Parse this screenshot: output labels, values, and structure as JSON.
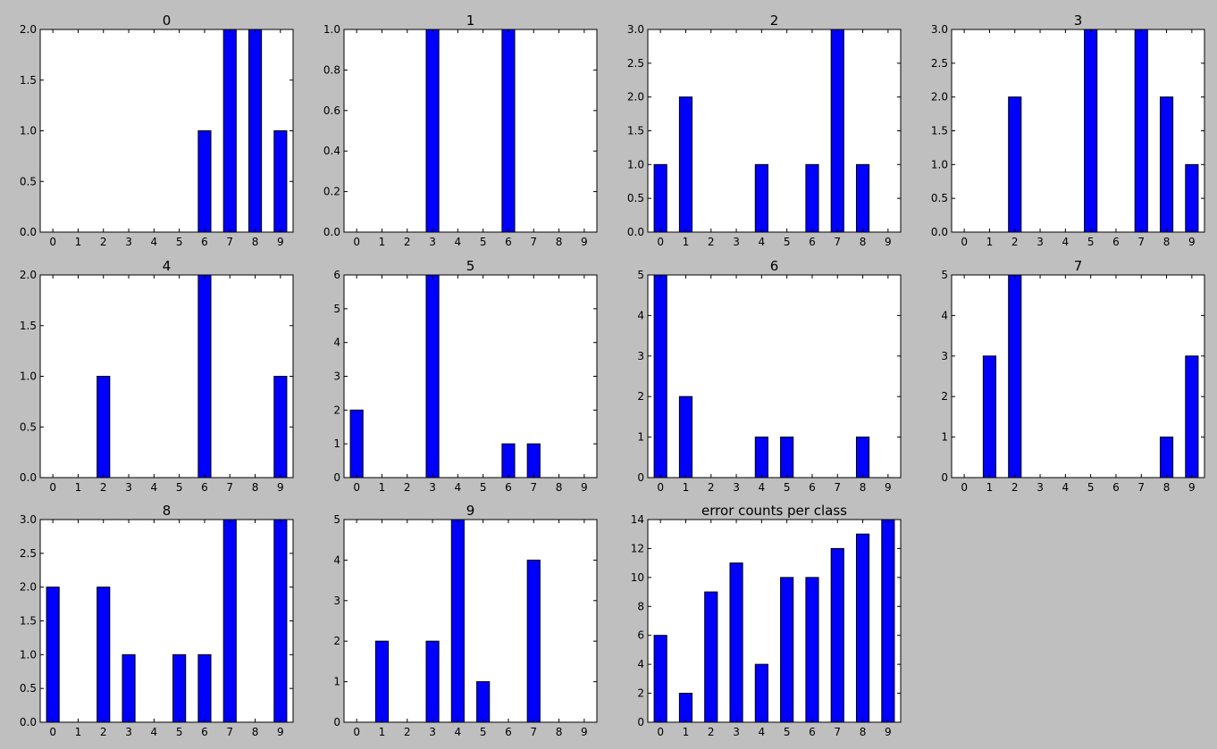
{
  "figure": {
    "background": "#bfbfbf",
    "bar_color": "#0000ff",
    "edge_color": "#000000"
  },
  "chart_data": [
    {
      "type": "bar",
      "title": "0",
      "categories": [
        "0",
        "1",
        "2",
        "3",
        "4",
        "5",
        "6",
        "7",
        "8",
        "9"
      ],
      "values": [
        0,
        0,
        0,
        0,
        0,
        0,
        1,
        2,
        2,
        1
      ],
      "ylim": [
        0,
        2
      ],
      "yticks": [
        "0.0",
        "0.5",
        "1.0",
        "1.5",
        "2.0"
      ],
      "grid": false
    },
    {
      "type": "bar",
      "title": "1",
      "categories": [
        "0",
        "1",
        "2",
        "3",
        "4",
        "5",
        "6",
        "7",
        "8",
        "9"
      ],
      "values": [
        0,
        0,
        0,
        1,
        0,
        0,
        1,
        0,
        0,
        0
      ],
      "ylim": [
        0,
        1
      ],
      "yticks": [
        "0.0",
        "0.2",
        "0.4",
        "0.6",
        "0.8",
        "1.0"
      ],
      "grid": false
    },
    {
      "type": "bar",
      "title": "2",
      "categories": [
        "0",
        "1",
        "2",
        "3",
        "4",
        "5",
        "6",
        "7",
        "8",
        "9"
      ],
      "values": [
        1,
        2,
        0,
        0,
        1,
        0,
        1,
        3,
        1,
        0
      ],
      "ylim": [
        0,
        3
      ],
      "yticks": [
        "0.0",
        "0.5",
        "1.0",
        "1.5",
        "2.0",
        "2.5",
        "3.0"
      ],
      "grid": false
    },
    {
      "type": "bar",
      "title": "3",
      "categories": [
        "0",
        "1",
        "2",
        "3",
        "4",
        "5",
        "6",
        "7",
        "8",
        "9"
      ],
      "values": [
        0,
        0,
        2,
        0,
        0,
        3,
        0,
        3,
        2,
        1
      ],
      "ylim": [
        0,
        3
      ],
      "yticks": [
        "0.0",
        "0.5",
        "1.0",
        "1.5",
        "2.0",
        "2.5",
        "3.0"
      ],
      "grid": false
    },
    {
      "type": "bar",
      "title": "4",
      "categories": [
        "0",
        "1",
        "2",
        "3",
        "4",
        "5",
        "6",
        "7",
        "8",
        "9"
      ],
      "values": [
        0,
        0,
        1,
        0,
        0,
        0,
        2,
        0,
        0,
        1
      ],
      "ylim": [
        0,
        2
      ],
      "yticks": [
        "0.0",
        "0.5",
        "1.0",
        "1.5",
        "2.0"
      ],
      "grid": false
    },
    {
      "type": "bar",
      "title": "5",
      "categories": [
        "0",
        "1",
        "2",
        "3",
        "4",
        "5",
        "6",
        "7",
        "8",
        "9"
      ],
      "values": [
        2,
        0,
        0,
        6,
        0,
        0,
        1,
        1,
        0,
        0
      ],
      "ylim": [
        0,
        6
      ],
      "yticks": [
        "0",
        "1",
        "2",
        "3",
        "4",
        "5",
        "6"
      ],
      "grid": false
    },
    {
      "type": "bar",
      "title": "6",
      "categories": [
        "0",
        "1",
        "2",
        "3",
        "4",
        "5",
        "6",
        "7",
        "8",
        "9"
      ],
      "values": [
        5,
        2,
        0,
        0,
        1,
        1,
        0,
        0,
        1,
        0
      ],
      "ylim": [
        0,
        5
      ],
      "yticks": [
        "0",
        "1",
        "2",
        "3",
        "4",
        "5"
      ],
      "grid": false
    },
    {
      "type": "bar",
      "title": "7",
      "categories": [
        "0",
        "1",
        "2",
        "3",
        "4",
        "5",
        "6",
        "7",
        "8",
        "9"
      ],
      "values": [
        0,
        3,
        5,
        0,
        0,
        0,
        0,
        0,
        1,
        3
      ],
      "ylim": [
        0,
        5
      ],
      "yticks": [
        "0",
        "1",
        "2",
        "3",
        "4",
        "5"
      ],
      "grid": false
    },
    {
      "type": "bar",
      "title": "8",
      "categories": [
        "0",
        "1",
        "2",
        "3",
        "4",
        "5",
        "6",
        "7",
        "8",
        "9"
      ],
      "values": [
        2,
        0,
        2,
        1,
        0,
        1,
        1,
        3,
        0,
        3
      ],
      "ylim": [
        0,
        3
      ],
      "yticks": [
        "0.0",
        "0.5",
        "1.0",
        "1.5",
        "2.0",
        "2.5",
        "3.0"
      ],
      "grid": false
    },
    {
      "type": "bar",
      "title": "9",
      "categories": [
        "0",
        "1",
        "2",
        "3",
        "4",
        "5",
        "6",
        "7",
        "8",
        "9"
      ],
      "values": [
        0,
        2,
        0,
        2,
        5,
        1,
        0,
        4,
        0,
        0
      ],
      "ylim": [
        0,
        5
      ],
      "yticks": [
        "0",
        "1",
        "2",
        "3",
        "4",
        "5"
      ],
      "grid": false
    },
    {
      "type": "bar",
      "title": "error counts per class",
      "categories": [
        "0",
        "1",
        "2",
        "3",
        "4",
        "5",
        "6",
        "7",
        "8",
        "9"
      ],
      "values": [
        6,
        2,
        9,
        11,
        4,
        10,
        10,
        12,
        13,
        14
      ],
      "ylim": [
        0,
        14
      ],
      "yticks": [
        "0",
        "2",
        "4",
        "6",
        "8",
        "10",
        "12",
        "14"
      ],
      "grid": false
    }
  ]
}
